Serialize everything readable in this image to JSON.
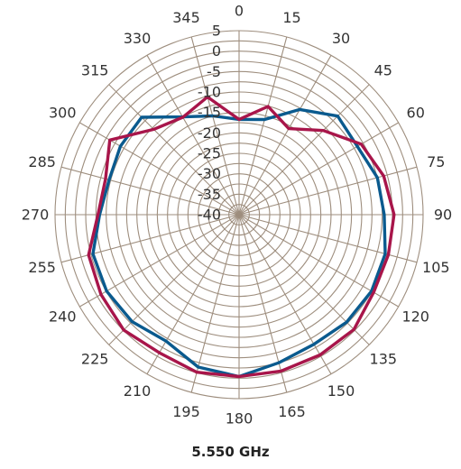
{
  "chart_data": {
    "type": "polar-line",
    "title": "5.550 GHz",
    "angle_ticks": [
      "0",
      "15",
      "30",
      "45",
      "60",
      "75",
      "90",
      "105",
      "120",
      "135",
      "150",
      "165",
      "180",
      "195",
      "210",
      "225",
      "240",
      "255",
      "270",
      "285",
      "300",
      "315",
      "330",
      "345"
    ],
    "radial_ticks": [
      "5",
      "0",
      "-5",
      "-10",
      "-15",
      "-20",
      "-25",
      "-30",
      "-35",
      "-40"
    ],
    "rlim": [
      -40,
      5
    ],
    "grid": true,
    "colors": {
      "grid": "#9e8e7e",
      "series_blue": "#0a5a8e",
      "series_red": "#a8154a"
    },
    "series": [
      {
        "color": "#0a5a8e",
        "angles": [
          0,
          15,
          30,
          45,
          60,
          75,
          90,
          105,
          120,
          135,
          150,
          165,
          180,
          195,
          210,
          225,
          240,
          255,
          270,
          285,
          300,
          315,
          330,
          345
        ],
        "values": [
          -16.7,
          -15.9,
          -10.3,
          -5.9,
          -6.6,
          -5.0,
          -4.5,
          -3.0,
          -2.6,
          -2.8,
          -3.4,
          -2.5,
          -0.4,
          -1.4,
          -4.3,
          -3.0,
          -2.6,
          -3.0,
          -5.9,
          -7.1,
          -6.5,
          -6.3,
          -12.4,
          -15.0
        ]
      },
      {
        "color": "#a8154a",
        "angles": [
          0,
          15,
          30,
          45,
          60,
          75,
          90,
          105,
          120,
          135,
          150,
          165,
          180,
          195,
          210,
          225,
          240,
          255,
          270,
          285,
          300,
          315,
          330,
          345
        ],
        "values": [
          -16.7,
          -12.6,
          -15.7,
          -10.9,
          -5.5,
          -3.4,
          -2.1,
          -2.2,
          -2.0,
          -0.3,
          -0.4,
          -0.4,
          -0.4,
          -0.1,
          -1.0,
          -0.1,
          -1.0,
          -1.9,
          -5.5,
          -6.2,
          -3.5,
          -10.5,
          -12.5,
          -10.2
        ]
      }
    ]
  }
}
